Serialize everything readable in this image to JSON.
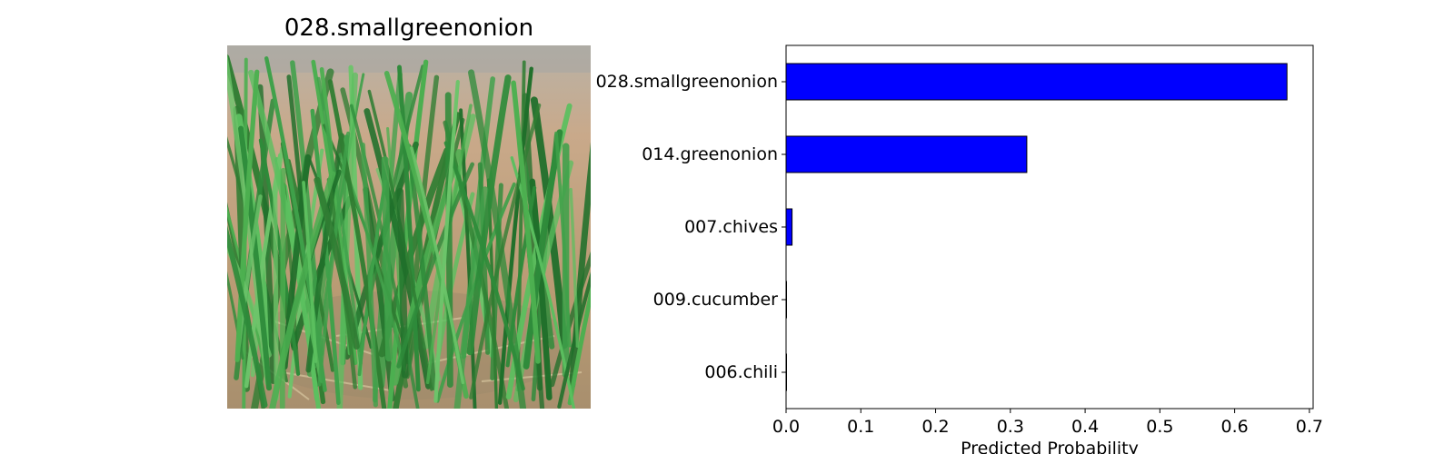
{
  "image_title": "028.smallgreenonion",
  "chart_data": {
    "type": "bar",
    "orientation": "horizontal",
    "categories": [
      "028.smallgreenonion",
      "014.greenonion",
      "007.chives",
      "009.cucumber",
      "006.chili"
    ],
    "values": [
      0.67,
      0.322,
      0.008,
      0.0005,
      0.0002
    ],
    "xlabel": "Predicted Probability",
    "ylabel": "",
    "xlim": [
      0,
      0.705
    ],
    "xticks": [
      0.0,
      0.1,
      0.2,
      0.3,
      0.4,
      0.5,
      0.6,
      0.7
    ],
    "xtick_labels": [
      "0.0",
      "0.1",
      "0.2",
      "0.3",
      "0.4",
      "0.5",
      "0.6",
      "0.7"
    ],
    "bar_color": "#0000ff",
    "bar_edge_color": "#000000",
    "grid": false,
    "legend": "none"
  }
}
